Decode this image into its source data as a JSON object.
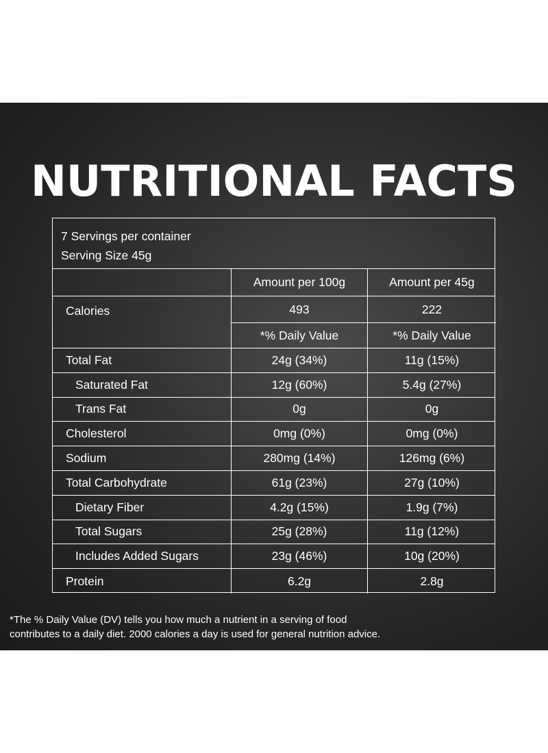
{
  "title": "NUTRITIONAL FACTS",
  "serving": {
    "servings_per_container": "7 Servings per container",
    "serving_size": "Serving Size 45g"
  },
  "columns": {
    "per_100g": "Amount per 100g",
    "per_45g": "Amount per 45g"
  },
  "calories": {
    "label": "Calories",
    "per_100g": "493",
    "per_45g": "222",
    "dv_label_100g": "*% Daily Value",
    "dv_label_45g": "*% Daily Value"
  },
  "nutrients": [
    {
      "label": "Total Fat",
      "per_100g": "24g (34%)",
      "per_45g": "11g (15%)"
    },
    {
      "label": "Saturated Fat",
      "per_100g": "12g (60%)",
      "per_45g": "5.4g (27%)"
    },
    {
      "label": "Trans Fat",
      "per_100g": "0g",
      "per_45g": "0g"
    },
    {
      "label": "Cholesterol",
      "per_100g": "0mg (0%)",
      "per_45g": "0mg (0%)"
    },
    {
      "label": "Sodium",
      "per_100g": "280mg (14%)",
      "per_45g": "126mg (6%)"
    },
    {
      "label": "Total Carbohydrate",
      "per_100g": "61g (23%)",
      "per_45g": "27g (10%)"
    },
    {
      "label": "Dietary Fiber",
      "per_100g": "4.2g (15%)",
      "per_45g": "1.9g (7%)"
    },
    {
      "label": "Total Sugars",
      "per_100g": "25g (28%)",
      "per_45g": "11g (12%)"
    },
    {
      "label": "Includes Added Sugars",
      "per_100g": "23g (46%)",
      "per_45g": "10g (20%)"
    },
    {
      "label": "Protein",
      "per_100g": "6.2g",
      "per_45g": "2.8g"
    }
  ],
  "footnote": {
    "line1": "*The % Daily Value (DV) tells you how much a nutrient in a serving of food",
    "line2": "contributes to a daily diet. 2000 calories a day is used for general nutrition advice."
  }
}
